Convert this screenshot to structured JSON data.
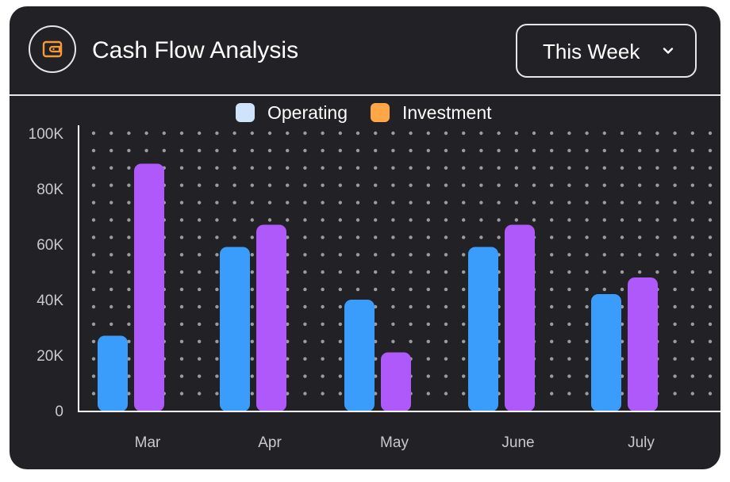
{
  "header": {
    "title": "Cash Flow Analysis",
    "period_selected": "This Week"
  },
  "colors": {
    "card_background": "#222226",
    "operating": "#3b9dfb",
    "investment": "#b059fa",
    "legend_operating": "#cfe4fb",
    "legend_investment": "#ffa646",
    "icon_accent": "#f59a3a",
    "grid_dot": "#9c9ca0",
    "axis": "#ffffff",
    "tick_text": "#c9c9cc"
  },
  "icons": {
    "app_icon": "wallet-icon",
    "dropdown_icon": "chevron-down-icon"
  },
  "chart_data": {
    "type": "bar",
    "categories": [
      "Mar",
      "Apr",
      "May",
      "June",
      "July"
    ],
    "series": [
      {
        "name": "Operating",
        "values": [
          27000,
          59000,
          40000,
          59000,
          42000
        ]
      },
      {
        "name": "Investment",
        "values": [
          89000,
          67000,
          21000,
          67000,
          48000
        ]
      }
    ],
    "y_ticks": [
      "0",
      "20K",
      "40K",
      "60K",
      "80K",
      "100K"
    ],
    "ylim": [
      0,
      100000
    ],
    "grid": "dotted",
    "legend_position": "top-center",
    "title": "",
    "xlabel": "",
    "ylabel": ""
  }
}
